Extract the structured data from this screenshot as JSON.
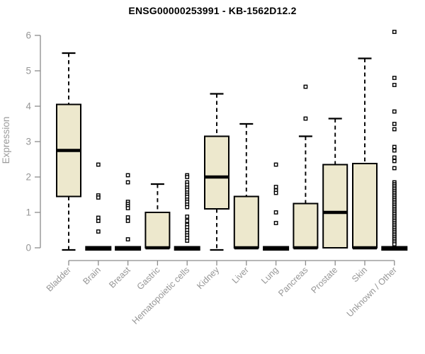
{
  "colors": {
    "background": "#FFFFFF",
    "title": "#000000",
    "axis": "#8C8C8C",
    "tick_label": "#969696",
    "box_fill": "#EDE8CD",
    "box_stroke": "#000000",
    "median": "#000000",
    "whisker": "#000000",
    "outlier_fill": "#FFFFFF",
    "outlier_stroke": "#000000"
  },
  "chart_data": {
    "type": "boxplot",
    "title": "ENSG00000253991 - KB-1562D12.2",
    "xlabel": "",
    "ylabel": "Expression",
    "ylim": [
      0,
      6
    ],
    "yticks": [
      0,
      1,
      2,
      3,
      4,
      5,
      6
    ],
    "grid": false,
    "legend": "none",
    "categories": [
      "Bladder",
      "Brain",
      "Breast",
      "Gastric",
      "Hematopoietic cells",
      "Kidney",
      "Liver",
      "Lung",
      "Pancreas",
      "Prostate",
      "Skin",
      "Unknown / Other"
    ],
    "boxes": [
      {
        "category": "Bladder",
        "whisker_low": 0,
        "q1": 1.45,
        "median": 2.75,
        "q3": 4.05,
        "whisker_high": 5.5,
        "outliers": []
      },
      {
        "category": "Brain",
        "whisker_low": 0,
        "q1": 0,
        "median": 0,
        "q3": 0,
        "whisker_high": 0,
        "outliers": [
          2.35,
          1.48,
          1.42,
          0.85,
          0.76,
          0.46
        ]
      },
      {
        "category": "Breast",
        "whisker_low": 0,
        "q1": 0,
        "median": 0,
        "q3": 0,
        "whisker_high": 0,
        "outliers": [
          2.05,
          1.85,
          1.3,
          1.24,
          1.18,
          1.12,
          0.86,
          0.76,
          0.24
        ]
      },
      {
        "category": "Gastric",
        "whisker_low": 0,
        "q1": 0,
        "median": 0,
        "q3": 1.0,
        "whisker_high": 1.8,
        "outliers": []
      },
      {
        "category": "Hematopoietic cells",
        "whisker_low": 0,
        "q1": 0,
        "median": 0,
        "q3": 0,
        "whisker_high": 0,
        "outliers": [
          2.05,
          2.0,
          1.85,
          1.78,
          1.7,
          1.64,
          1.56,
          1.5,
          1.44,
          1.36,
          1.3,
          1.22,
          1.15,
          0.88,
          0.76,
          0.65,
          0.58,
          0.5,
          0.42,
          0.35,
          0.28,
          0.2
        ]
      },
      {
        "category": "Kidney",
        "whisker_low": 0,
        "q1": 1.1,
        "median": 2.0,
        "q3": 3.15,
        "whisker_high": 4.35,
        "outliers": []
      },
      {
        "category": "Liver",
        "whisker_low": 0,
        "q1": 0,
        "median": 0,
        "q3": 1.45,
        "whisker_high": 3.5,
        "outliers": []
      },
      {
        "category": "Lung",
        "whisker_low": 0,
        "q1": 0,
        "median": 0,
        "q3": 0,
        "whisker_high": 0,
        "outliers": [
          2.35,
          1.72,
          1.62,
          1.55,
          1.0,
          0.7
        ]
      },
      {
        "category": "Pancreas",
        "whisker_low": 0,
        "q1": 0,
        "median": 0,
        "q3": 1.25,
        "whisker_high": 3.15,
        "outliers": [
          4.55,
          3.65
        ]
      },
      {
        "category": "Prostate",
        "whisker_low": 0,
        "q1": 0,
        "median": 1.0,
        "q3": 2.35,
        "whisker_high": 3.65,
        "outliers": []
      },
      {
        "category": "Skin",
        "whisker_low": 0,
        "q1": 0,
        "median": 0,
        "q3": 2.38,
        "whisker_high": 5.35,
        "outliers": []
      },
      {
        "category": "Unknown / Other",
        "whisker_low": 0,
        "q1": 0,
        "median": 0,
        "q3": 0,
        "whisker_high": 0,
        "outliers": [
          6.1,
          4.8,
          4.6,
          3.85,
          3.5,
          3.35,
          2.85,
          2.75,
          2.55,
          2.45,
          2.25,
          1.85,
          1.8,
          1.75,
          1.7,
          1.65,
          1.6,
          1.55,
          1.5,
          1.45,
          1.4,
          1.35,
          1.3,
          1.25,
          1.2,
          1.15,
          1.1,
          1.05,
          1.0,
          0.95,
          0.9,
          0.85,
          0.8,
          0.75,
          0.7,
          0.65,
          0.6,
          0.55,
          0.5,
          0.45,
          0.4,
          0.35,
          0.3,
          0.25,
          0.2,
          0.15,
          0.1
        ]
      }
    ]
  }
}
